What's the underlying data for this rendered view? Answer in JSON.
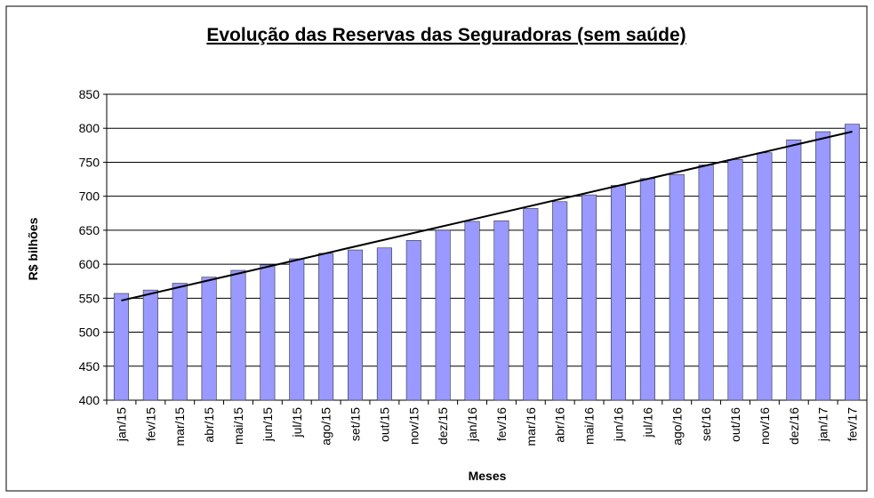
{
  "chart_data": {
    "type": "bar",
    "title": "Evolução das Reservas das Seguradoras (sem saúde)",
    "xlabel": "Meses",
    "ylabel": "R$ bilhões",
    "categories": [
      "jan/15",
      "fev/15",
      "mar/15",
      "abr/15",
      "mai/15",
      "jun/15",
      "jul/15",
      "ago/15",
      "set/15",
      "out/15",
      "nov/15",
      "dez/15",
      "jan/16",
      "fev/16",
      "mar/16",
      "abr/16",
      "mai/16",
      "jun/16",
      "jul/16",
      "ago/16",
      "set/16",
      "out/16",
      "nov/16",
      "dez/16",
      "jan/17",
      "fev/17"
    ],
    "values": [
      557,
      562,
      572,
      581,
      591,
      599,
      608,
      616,
      621,
      624,
      635,
      650,
      663,
      664,
      682,
      692,
      702,
      716,
      726,
      732,
      746,
      754,
      764,
      783,
      795,
      806
    ],
    "color": "#9999ff",
    "ylim": [
      400,
      850
    ],
    "yticks": [
      400,
      450,
      500,
      550,
      600,
      650,
      700,
      750,
      800,
      850
    ],
    "grid": true,
    "trendline": "linear"
  }
}
